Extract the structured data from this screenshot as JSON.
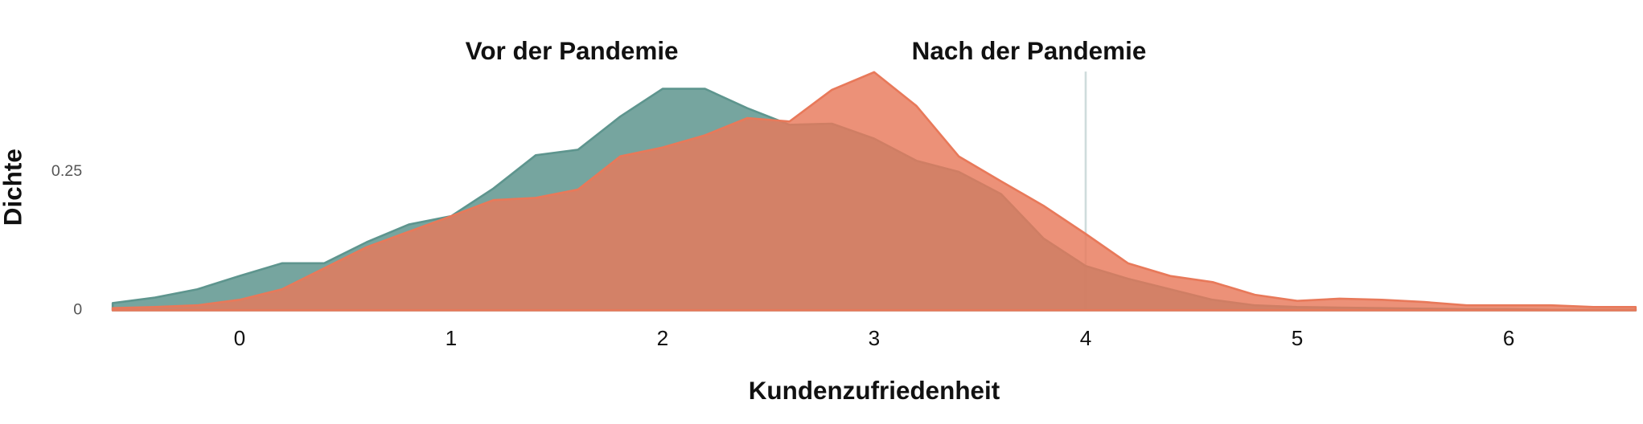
{
  "chart_data": {
    "type": "area",
    "x_label": "Kundenzufriedenheit",
    "y_label": "Dichte",
    "x": [
      -0.6,
      -0.4,
      -0.2,
      0,
      0.2,
      0.4,
      0.6,
      0.8,
      1.0,
      1.2,
      1.4,
      1.6,
      1.8,
      2.0,
      2.2,
      2.4,
      2.6,
      2.8,
      3.0,
      3.2,
      3.4,
      3.6,
      3.8,
      4.0,
      4.2,
      4.4,
      4.6,
      4.8,
      5.0,
      5.2,
      5.4,
      5.6,
      5.8,
      6.0,
      6.2,
      6.4,
      6.6
    ],
    "series": [
      {
        "name": "Vor der Pandemie",
        "color": "#5e958e",
        "values": [
          0.013,
          0.023,
          0.038,
          0.062,
          0.085,
          0.085,
          0.123,
          0.155,
          0.17,
          0.22,
          0.28,
          0.29,
          0.35,
          0.4,
          0.4,
          0.365,
          0.335,
          0.337,
          0.31,
          0.27,
          0.25,
          0.21,
          0.13,
          0.08,
          0.057,
          0.038,
          0.019,
          0.009,
          0.006,
          0.005,
          0.004,
          0.003,
          0.002,
          0.002,
          0.001,
          0.001,
          0.001
        ]
      },
      {
        "name": "Nach der Pandemie",
        "color": "#e8795a",
        "values": [
          0.004,
          0.006,
          0.009,
          0.019,
          0.038,
          0.076,
          0.114,
          0.142,
          0.17,
          0.199,
          0.203,
          0.218,
          0.278,
          0.294,
          0.316,
          0.347,
          0.341,
          0.398,
          0.43,
          0.369,
          0.278,
          0.233,
          0.189,
          0.138,
          0.085,
          0.062,
          0.051,
          0.028,
          0.017,
          0.021,
          0.019,
          0.015,
          0.009,
          0.009,
          0.009,
          0.006,
          0.006
        ]
      }
    ],
    "xlim": [
      -0.6,
      6.6
    ],
    "xticks": [
      0,
      1,
      2,
      3,
      4,
      5,
      6
    ],
    "ylim": [
      0,
      0.45
    ],
    "yticks": [
      0,
      0.25
    ],
    "vline": 4
  }
}
